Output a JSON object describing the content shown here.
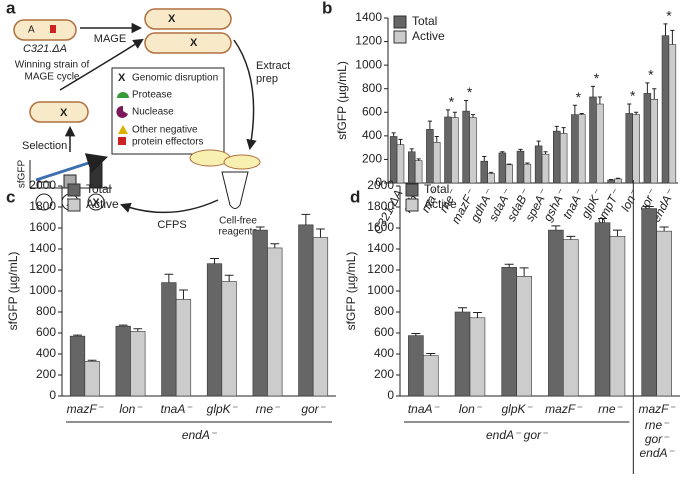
{
  "diagram": {
    "panel": "a",
    "strain": "C321.ΔA",
    "mage": "MAGE",
    "extract": [
      "Extract",
      "prep"
    ],
    "legend": [
      "Genomic disruption",
      "Protease",
      "Nuclease",
      [
        "Other negative",
        "protein effectors"
      ]
    ],
    "winning": [
      "Winning strain of",
      "MAGE cycle"
    ],
    "selection": "Selection",
    "cfps": "CFPS",
    "reagents": [
      "Cell-free",
      "reagents"
    ],
    "sfgfp": "sfGFP"
  },
  "chart_data": [
    {
      "type": "bar",
      "panel": "b",
      "ylabel": "sfGFP (µg/mL)",
      "categories": [
        "C321.ΔA",
        "rnb⁻",
        "rna⁻",
        "rne⁻",
        "mazF⁻",
        "gdhA⁻",
        "sdaA⁻",
        "sdaB⁻",
        "speA⁻",
        "gshA⁻",
        "tnaA⁻",
        "glpK⁻",
        "ompT⁻",
        "lon⁻",
        "gor⁻",
        "endA⁻"
      ],
      "series": [
        {
          "name": "Total",
          "color": "#666666",
          "values": [
            395,
            265,
            455,
            560,
            610,
            185,
            255,
            270,
            315,
            440,
            580,
            730,
            25,
            590,
            760,
            1250
          ],
          "errors": [
            30,
            25,
            70,
            60,
            90,
            40,
            10,
            15,
            40,
            40,
            80,
            90,
            5,
            80,
            90,
            100
          ]
        },
        {
          "name": "Active",
          "color": "#cccccc",
          "values": [
            325,
            190,
            345,
            555,
            555,
            80,
            155,
            160,
            245,
            420,
            580,
            670,
            35,
            580,
            710,
            1175
          ],
          "errors": [
            45,
            15,
            50,
            45,
            25,
            10,
            5,
            10,
            20,
            50,
            10,
            60,
            5,
            20,
            90,
            120
          ]
        }
      ],
      "significance": [
        null,
        null,
        null,
        "*",
        "*",
        null,
        null,
        null,
        null,
        null,
        "*",
        "*",
        null,
        "*",
        "*",
        "*"
      ],
      "ylim": [
        0,
        1400
      ],
      "yticks": [
        0,
        200,
        400,
        600,
        800,
        1000,
        1200,
        1400
      ],
      "legend": "upper left"
    },
    {
      "type": "bar",
      "panel": "c",
      "ylabel": "sfGFP (µg/mL)",
      "groups": [
        {
          "label": "endA⁻",
          "categories": [
            "mazF⁻",
            "lon⁻",
            "tnaA⁻",
            "glpK⁻",
            "rne⁻",
            "gor⁻"
          ]
        }
      ],
      "series": [
        {
          "name": "Total",
          "color": "#666666",
          "values": [
            570,
            665,
            1080,
            1260,
            1580,
            1630
          ],
          "errors": [
            10,
            10,
            80,
            50,
            30,
            100
          ]
        },
        {
          "name": "Active",
          "color": "#cccccc",
          "values": [
            330,
            615,
            920,
            1090,
            1410,
            1510
          ],
          "errors": [
            10,
            25,
            90,
            60,
            40,
            80
          ]
        }
      ],
      "ylim": [
        0,
        2000
      ],
      "yticks": [
        0,
        200,
        400,
        600,
        800,
        1000,
        1200,
        1400,
        1600,
        1800,
        2000
      ],
      "legend": "upper left"
    },
    {
      "type": "bar",
      "panel": "d",
      "ylabel": "sfGFP (µg/mL)",
      "groups": [
        {
          "label": "endA⁻ gor⁻",
          "categories": [
            "tnaA⁻",
            "lon⁻",
            "glpK⁻",
            "mazF⁻",
            "rne⁻"
          ]
        },
        {
          "label": [
            "rne⁻",
            "gor⁻",
            "endA⁻"
          ],
          "categories": [
            "mazF⁻"
          ]
        }
      ],
      "series": [
        {
          "name": "Total",
          "color": "#666666",
          "values": [
            575,
            800,
            1225,
            1580,
            1650,
            1785
          ],
          "errors": [
            20,
            40,
            30,
            40,
            40,
            20
          ]
        },
        {
          "name": "Active",
          "color": "#cccccc",
          "values": [
            385,
            745,
            1140,
            1490,
            1520,
            1570
          ],
          "errors": [
            20,
            50,
            80,
            30,
            60,
            40
          ]
        }
      ],
      "ylim": [
        0,
        2000
      ],
      "yticks": [
        0,
        200,
        400,
        600,
        800,
        1000,
        1200,
        1400,
        1600,
        1800,
        2000
      ],
      "legend": "upper left"
    }
  ]
}
